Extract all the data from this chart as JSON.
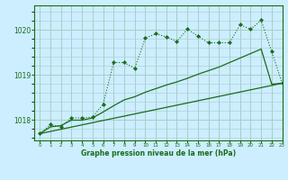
{
  "title": "Graphe pression niveau de la mer (hPa)",
  "background_color": "#cceeff",
  "grid_color": "#aacccc",
  "line_color": "#1a6b1a",
  "xlim": [
    -0.5,
    23
  ],
  "ylim": [
    1017.55,
    1020.55
  ],
  "yticks": [
    1018,
    1019,
    1020
  ],
  "xticks": [
    0,
    1,
    2,
    3,
    4,
    5,
    6,
    7,
    8,
    9,
    10,
    11,
    12,
    13,
    14,
    15,
    16,
    17,
    18,
    19,
    20,
    21,
    22,
    23
  ],
  "series1_x": [
    0,
    1,
    2,
    3,
    4,
    5,
    6,
    7,
    8,
    9,
    10,
    11,
    12,
    13,
    14,
    15,
    16,
    17,
    18,
    19,
    20,
    21,
    22,
    23
  ],
  "series1_y": [
    1017.7,
    1017.9,
    1017.85,
    1018.05,
    1018.05,
    1018.07,
    1018.35,
    1019.28,
    1019.28,
    1019.15,
    1019.82,
    1019.92,
    1019.85,
    1019.75,
    1020.02,
    1019.87,
    1019.72,
    1019.72,
    1019.72,
    1020.12,
    1020.02,
    1020.22,
    1019.52,
    1018.82
  ],
  "series2_x": [
    0,
    23
  ],
  "series2_y": [
    1017.7,
    1018.82
  ],
  "series3_x": [
    0,
    1,
    2,
    3,
    4,
    5,
    6,
    7,
    8,
    9,
    10,
    11,
    12,
    13,
    14,
    15,
    16,
    17,
    18,
    19,
    20,
    21,
    22,
    23
  ],
  "series3_y": [
    1017.7,
    1017.85,
    1017.88,
    1018.0,
    1018.0,
    1018.05,
    1018.18,
    1018.32,
    1018.45,
    1018.52,
    1018.62,
    1018.7,
    1018.78,
    1018.85,
    1018.93,
    1019.02,
    1019.1,
    1019.18,
    1019.28,
    1019.38,
    1019.48,
    1019.58,
    1018.8,
    1018.82
  ]
}
